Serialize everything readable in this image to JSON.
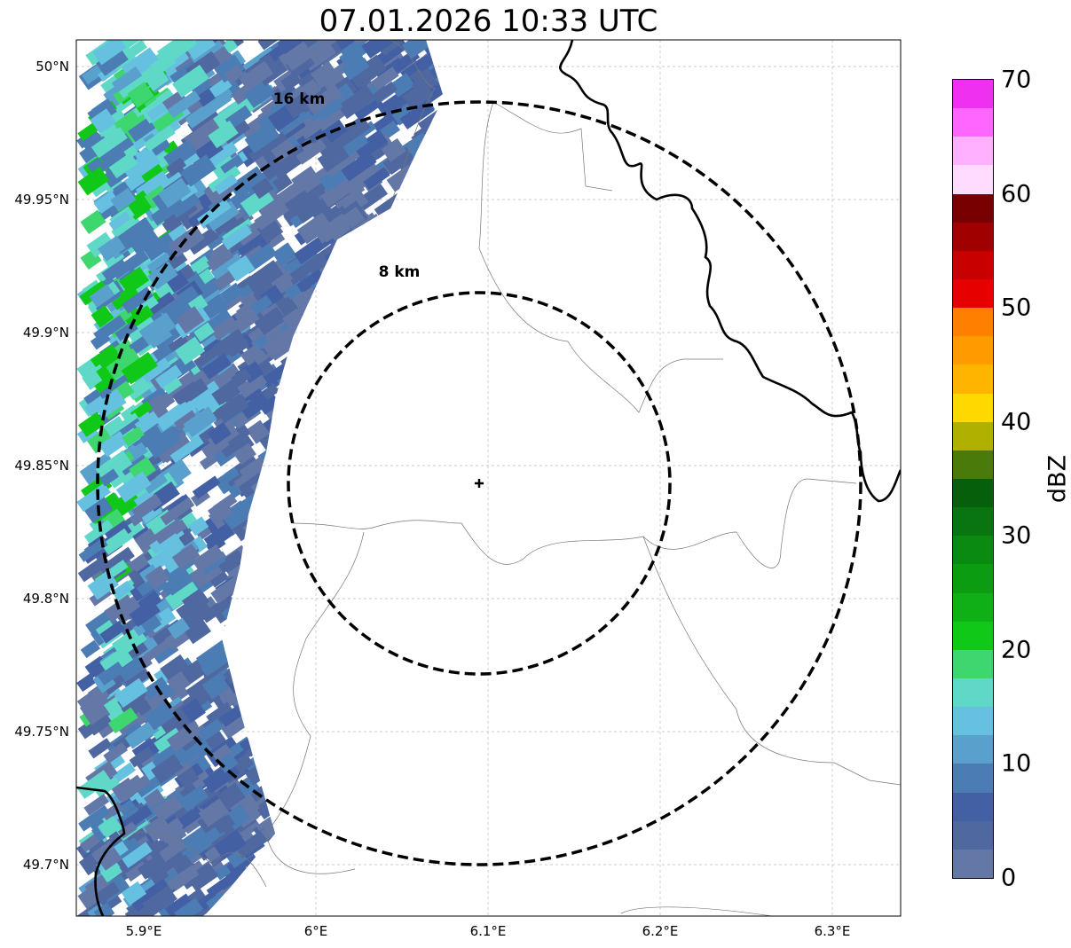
{
  "title": "07.01.2026 10:33 UTC",
  "x_ticks": [
    "5.9°E",
    "6°E",
    "6.1°E",
    "6.2°E",
    "6.3°E"
  ],
  "y_ticks": [
    "50°N",
    "49.95°N",
    "49.9°N",
    "49.85°N",
    "49.8°N",
    "49.75°N",
    "49.7°N"
  ],
  "rings": {
    "outer_label": "16 km",
    "inner_label": "8 km"
  },
  "colorbar": {
    "label": "dBZ",
    "ticks": [
      "70",
      "60",
      "50",
      "40",
      "30",
      "20",
      "10",
      "0"
    ],
    "colors_top_to_bottom": [
      "#f030f0",
      "#ff66ff",
      "#ffb0ff",
      "#ffdcff",
      "#780000",
      "#a00000",
      "#c80000",
      "#e60000",
      "#ff7f00",
      "#ff9a00",
      "#ffb400",
      "#ffd800",
      "#b0b000",
      "#4a7a0a",
      "#065f0a",
      "#087510",
      "#0a8a10",
      "#0c9c12",
      "#0eb015",
      "#10c818",
      "#3ed66e",
      "#60d8c8",
      "#66c0e0",
      "#5aa0cc",
      "#4c7cb4",
      "#4460a4",
      "#5068a0",
      "#6478a8"
    ]
  }
}
